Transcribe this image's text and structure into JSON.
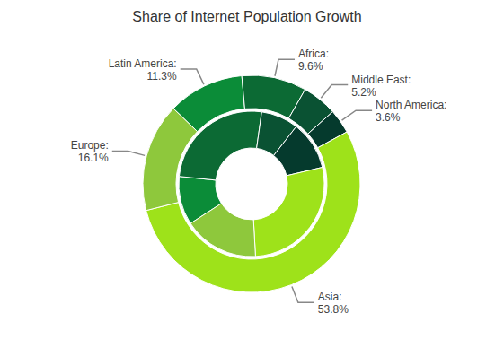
{
  "chart_data": {
    "type": "pie",
    "title": "Share of Internet Population Growth",
    "categories": [
      "Latin America:",
      "Africa:",
      "Middle East:",
      "North America:",
      "Asia:",
      "Europe:"
    ],
    "colors": [
      "#0b8c38",
      "#0c6a34",
      "#0a5233",
      "#053a2d",
      "#9ee21a",
      "#8ec83c"
    ],
    "data_labels": true,
    "series": [
      {
        "values": [
          11.3,
          9.6,
          5.2,
          3.6,
          53.8,
          16.1
        ],
        "value_labels": [
          "11.3%",
          "9.6%",
          "5.2%",
          "3.6%",
          "53.8%",
          "16.1%"
        ]
      },
      {
        "values": [
          10.8,
          25.6,
          8.3,
          10.8,
          27.8,
          16.7
        ]
      }
    ]
  }
}
